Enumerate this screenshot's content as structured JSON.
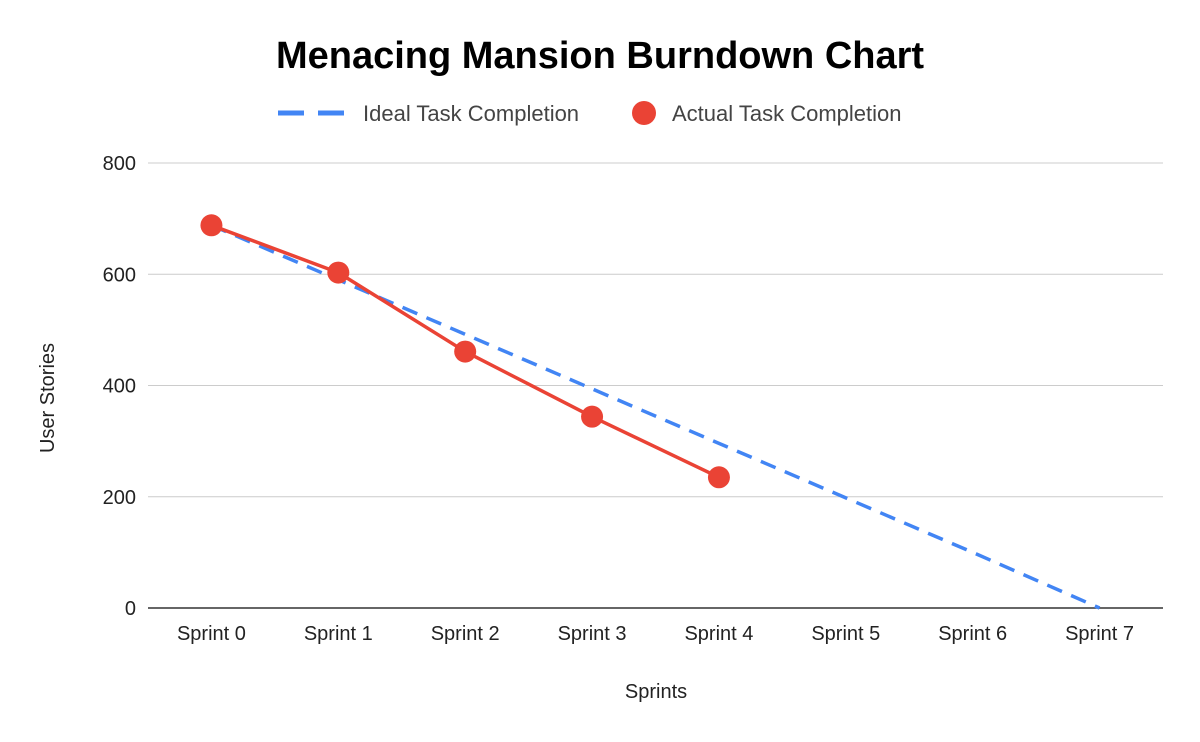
{
  "chart_data": {
    "type": "line",
    "title": "Menacing Mansion Burndown Chart",
    "xlabel": "Sprints",
    "ylabel": "User Stories",
    "categories": [
      "Sprint 0",
      "Sprint 1",
      "Sprint 2",
      "Sprint 3",
      "Sprint 4",
      "Sprint 5",
      "Sprint 6",
      "Sprint 7"
    ],
    "y_ticks": [
      "0",
      "200",
      "400",
      "600",
      "800"
    ],
    "ylim": [
      0,
      800
    ],
    "grid": true,
    "legend_position": "top",
    "series": [
      {
        "name": "Ideal Task Completion",
        "style": "dashed line",
        "color": "#4285F4",
        "values": [
          688,
          590,
          492,
          394,
          296,
          198,
          100,
          0
        ]
      },
      {
        "name": "Actual Task Completion",
        "style": "line with markers",
        "color": "#EA4335",
        "values": [
          688,
          603,
          461,
          344,
          235,
          null,
          null,
          null
        ]
      }
    ]
  }
}
